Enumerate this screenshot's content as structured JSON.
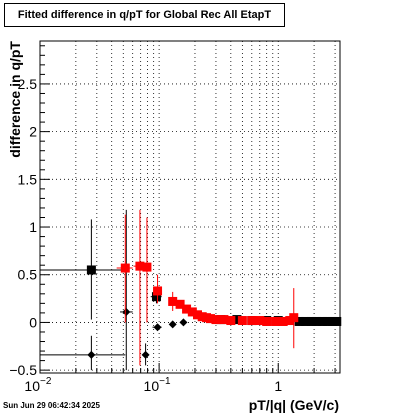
{
  "title": "Fitted difference in q/pT for Global Rec All EtapT",
  "timestamp": "Sun Jun 29 06:42:34 2025",
  "chart_data": {
    "type": "scatter",
    "title": "Fitted difference in q/pT for Global Rec All EtapT",
    "xlabel": "pT/|q| (GeV/c)",
    "ylabel": "difference in q/pT",
    "xscale": "log",
    "xlim": [
      0.01,
      3.3
    ],
    "ylim": [
      -0.53,
      2.95
    ],
    "x_ticks": [
      {
        "value": 0.01,
        "label": "10^-2",
        "base": "10",
        "exp": "−2"
      },
      {
        "value": 0.1,
        "label": "10^-1",
        "base": "10",
        "exp": "−1"
      },
      {
        "value": 1,
        "label": "1",
        "base": "1",
        "exp": ""
      }
    ],
    "y_ticks": [
      {
        "value": -0.5,
        "label": "−0.5"
      },
      {
        "value": 0,
        "label": "0"
      },
      {
        "value": 0.5,
        "label": "0.5"
      },
      {
        "value": 1,
        "label": "1"
      },
      {
        "value": 1.5,
        "label": "1.5"
      },
      {
        "value": 2,
        "label": "2"
      },
      {
        "value": 2.5,
        "label": "2.5"
      }
    ],
    "grid": true,
    "series": [
      {
        "marker": "square",
        "color": "#000000",
        "points": [
          {
            "x": 0.027,
            "y": 0.55,
            "xlo": 0.01,
            "xhi": 0.052,
            "ylo": 0.03,
            "yhi": 1.08
          },
          {
            "x": 0.095,
            "y": 0.27,
            "xlo": 0.085,
            "xhi": 0.105,
            "ylo": 0.2,
            "yhi": 0.34
          },
          {
            "x": 0.33,
            "y": 0.03
          },
          {
            "x": 0.45,
            "y": 0.03
          },
          {
            "x": 0.6,
            "y": 0.02
          },
          {
            "x": 0.8,
            "y": 0.02
          },
          {
            "x": 1.0,
            "y": 0.02
          },
          {
            "x": 1.5,
            "y": 0.01
          },
          {
            "x": 1.7,
            "y": 0.01
          },
          {
            "x": 1.9,
            "y": 0.01
          },
          {
            "x": 2.1,
            "y": 0.01
          },
          {
            "x": 2.35,
            "y": 0.01
          },
          {
            "x": 2.6,
            "y": 0.01
          },
          {
            "x": 2.85,
            "y": 0.01
          },
          {
            "x": 3.1,
            "y": 0.01
          }
        ]
      },
      {
        "marker": "diamond",
        "color": "#000000",
        "points": [
          {
            "x": 0.027,
            "y": -0.34,
            "xlo": 0.01,
            "xhi": 0.052,
            "ylo": -0.5,
            "yhi": -0.14
          },
          {
            "x": 0.053,
            "y": 0.11,
            "xlo": 0.047,
            "xhi": 0.06,
            "ylo": -0.5,
            "yhi": 1.18
          },
          {
            "x": 0.077,
            "y": -0.34,
            "ylo": -0.45,
            "yhi": -0.22
          },
          {
            "x": 0.097,
            "y": -0.05,
            "xlo": 0.088,
            "xhi": 0.105
          },
          {
            "x": 0.13,
            "y": -0.02
          },
          {
            "x": 0.16,
            "y": 0.0
          }
        ]
      },
      {
        "marker": "square",
        "color": "#ff0000",
        "points": [
          {
            "x": 0.052,
            "y": 0.57,
            "xlo": 0.044,
            "xhi": 0.06,
            "ylo": 0.0,
            "yhi": 1.13
          },
          {
            "x": 0.069,
            "y": 0.59,
            "xlo": 0.061,
            "xhi": 0.075,
            "ylo": -0.45,
            "yhi": 1.18
          },
          {
            "x": 0.079,
            "y": 0.58,
            "xlo": 0.075,
            "xhi": 0.085,
            "ylo": 0.0,
            "yhi": 1.1
          },
          {
            "x": 0.097,
            "y": 0.33,
            "ylo": 0.2,
            "yhi": 0.5
          },
          {
            "x": 0.13,
            "y": 0.22,
            "ylo": 0.12,
            "yhi": 0.32
          },
          {
            "x": 0.15,
            "y": 0.19
          },
          {
            "x": 0.17,
            "y": 0.14
          },
          {
            "x": 0.19,
            "y": 0.11
          },
          {
            "x": 0.21,
            "y": 0.08
          },
          {
            "x": 0.23,
            "y": 0.06
          },
          {
            "x": 0.25,
            "y": 0.05
          },
          {
            "x": 0.27,
            "y": 0.04
          },
          {
            "x": 0.3,
            "y": 0.03
          },
          {
            "x": 0.35,
            "y": 0.03
          },
          {
            "x": 0.4,
            "y": 0.02
          },
          {
            "x": 0.5,
            "y": 0.02
          },
          {
            "x": 0.6,
            "y": 0.02
          },
          {
            "x": 0.7,
            "y": 0.02
          },
          {
            "x": 0.8,
            "y": 0.01
          },
          {
            "x": 0.95,
            "y": 0.01
          },
          {
            "x": 1.1,
            "y": 0.01
          },
          {
            "x": 1.25,
            "y": 0.02
          },
          {
            "x": 1.35,
            "y": 0.05,
            "ylo": -0.27,
            "yhi": 0.36
          }
        ]
      }
    ]
  }
}
